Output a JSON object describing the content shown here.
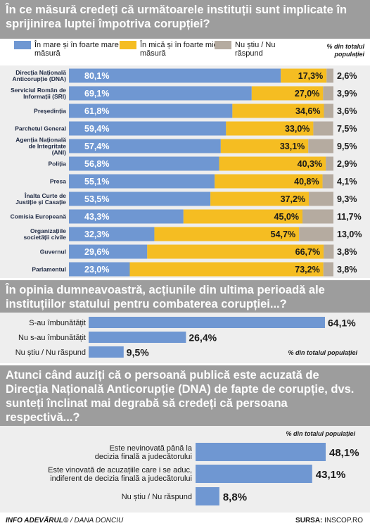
{
  "colors": {
    "blue": "#6f97d2",
    "yellow": "#f5bd22",
    "gray": "#b5aba0",
    "header": "#9d9d9d"
  },
  "header1": {
    "title": "În ce măsură credeți că următoarele instituții sunt implicate în sprijinirea luptei împotriva corupției?"
  },
  "legend": {
    "items": [
      "În mare și în foarte mare măsură",
      "În mică și în foarte mică măsură",
      "Nu știu / Nu răspund"
    ],
    "note": "% din totalul populației"
  },
  "header2": {
    "title": "În opinia dumneavoastră, acțiunile din ultima perioadă ale instituțiilor statului pentru combaterea corupției...?"
  },
  "header3": {
    "title": "Atunci când auziți că o persoană publică este acuzată de Direcția Națională Anticorupție (DNA) de fapte de corupție, dvs. sunteți înclinat mai degrabă să credeți că persoana respectivă...?"
  },
  "chart_data": [
    {
      "type": "bar",
      "stacked": true,
      "orientation": "horizontal",
      "categories": [
        "Direcția Națională Anticorupție (DNA)",
        "Serviciul Român de Informații (SRI)",
        "Președinția",
        "Parchetul General",
        "Agenția Națională de Integritate (ANI)",
        "Poliția",
        "Presa",
        "Înalta Curte de Justiție și Casație",
        "Comisia Europeană",
        "Organizațiile societății civile",
        "Guvernul",
        "Parlamentul"
      ],
      "series": [
        {
          "name": "În mare și în foarte mare măsură",
          "values": [
            80.1,
            69.1,
            61.8,
            59.4,
            57.4,
            56.8,
            55.1,
            53.5,
            43.3,
            32.3,
            29.6,
            23.0
          ],
          "labels": [
            "80,1%",
            "69,1%",
            "61,8%",
            "59,4%",
            "57,4%",
            "56,8%",
            "55,1%",
            "53,5%",
            "43,3%",
            "32,3%",
            "29,6%",
            "23,0%"
          ]
        },
        {
          "name": "În mică și în foarte mică măsură",
          "values": [
            17.3,
            27.0,
            34.6,
            33.0,
            33.1,
            40.3,
            40.8,
            37.2,
            45.0,
            54.7,
            66.7,
            73.2
          ],
          "labels": [
            "17,3%",
            "27,0%",
            "34,6%",
            "33,0%",
            "33,1%",
            "40,3%",
            "40,8%",
            "37,2%",
            "45,0%",
            "54,7%",
            "66,7%",
            "73,2%"
          ]
        },
        {
          "name": "Nu știu / Nu răspund",
          "values": [
            2.6,
            3.9,
            3.6,
            7.5,
            9.5,
            2.9,
            4.1,
            9.3,
            11.7,
            13.0,
            3.8,
            3.8
          ],
          "labels": [
            "2,6%",
            "3,9%",
            "3,6%",
            "7,5%",
            "9,5%",
            "2,9%",
            "4,1%",
            "9,3%",
            "11,7%",
            "13,0%",
            "3,8%",
            "3,8%"
          ]
        }
      ]
    },
    {
      "type": "bar",
      "orientation": "horizontal",
      "categories": [
        "S-au îmbunătățit",
        "Nu s-au îmbunătățit",
        "Nu știu / Nu răspund"
      ],
      "values": [
        64.1,
        26.4,
        9.5
      ],
      "labels": [
        "64,1%",
        "26,4%",
        "9,5%"
      ],
      "note": "% din totalul populației"
    },
    {
      "type": "bar",
      "orientation": "horizontal",
      "categories": [
        "Este nevinovată până la decizia finală a judecătorului",
        "Este vinovată de acuzațiile care i se aduc, indiferent de decizia finală a judecătorului",
        "Nu știu / Nu răspund"
      ],
      "values": [
        48.1,
        43.1,
        8.8
      ],
      "labels": [
        "48,1%",
        "43,1%",
        "8,8%"
      ],
      "note": "% din totalul populației"
    }
  ],
  "footer": {
    "brand": "INFO ADEVĂRUL©",
    "author": " / DANA DONCIU",
    "source_label": "SURSA:",
    "source": " INSCOP.RO"
  }
}
